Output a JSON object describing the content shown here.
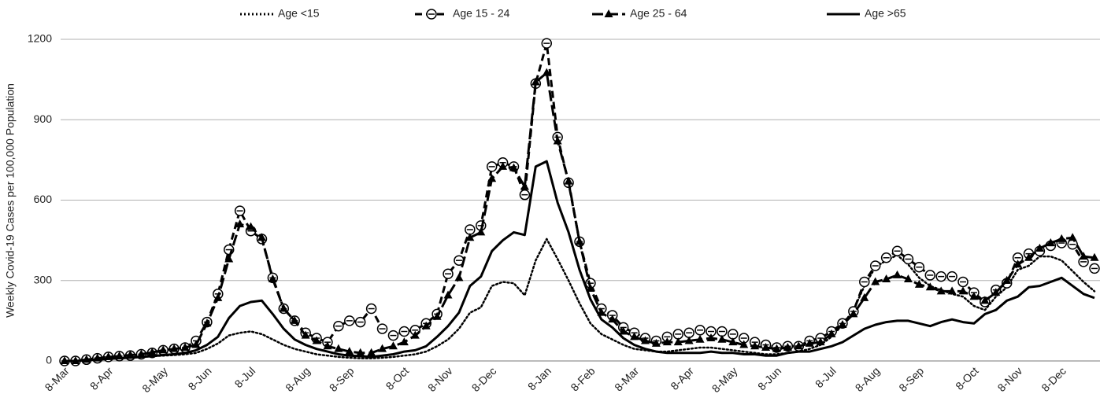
{
  "chart_data": {
    "type": "line",
    "ylabel": "Weekly Covid-19 Cases per 100,000 Population",
    "categories": [
      "8-Mar",
      null,
      null,
      null,
      "8-Apr",
      null,
      null,
      null,
      null,
      "8-May",
      null,
      null,
      null,
      "8-Jun",
      null,
      null,
      null,
      "8-Jul",
      null,
      null,
      null,
      null,
      "8-Aug",
      null,
      null,
      null,
      "8-Sep",
      null,
      null,
      null,
      null,
      "8-Oct",
      null,
      null,
      null,
      "8-Nov",
      null,
      null,
      null,
      "8-Dec",
      null,
      null,
      null,
      null,
      "8-Jan",
      null,
      null,
      null,
      "8-Feb",
      null,
      null,
      null,
      "8-Mar",
      null,
      null,
      null,
      null,
      "8-Apr",
      null,
      null,
      null,
      "8-May",
      null,
      null,
      null,
      "8-Jun",
      null,
      null,
      null,
      null,
      "8-Jul",
      null,
      null,
      null,
      "8-Aug",
      null,
      null,
      null,
      "8-Sep",
      null,
      null,
      null,
      null,
      "8-Oct",
      null,
      null,
      null,
      "8-Nov",
      null,
      null,
      null,
      "8-Dec",
      null,
      null,
      null
    ],
    "series": [
      {
        "name": "Age <15",
        "color": "#000000",
        "dash": "dotted",
        "marker": "none",
        "values": [
          0,
          0,
          3,
          5,
          8,
          10,
          12,
          15,
          18,
          20,
          22,
          25,
          30,
          45,
          65,
          95,
          105,
          110,
          100,
          80,
          60,
          45,
          35,
          25,
          20,
          15,
          12,
          10,
          10,
          12,
          15,
          20,
          25,
          35,
          55,
          80,
          120,
          180,
          200,
          280,
          295,
          290,
          245,
          375,
          455,
          380,
          300,
          215,
          140,
          100,
          80,
          60,
          45,
          40,
          35,
          35,
          40,
          45,
          50,
          50,
          45,
          40,
          35,
          30,
          25,
          25,
          30,
          35,
          45,
          60,
          90,
          135,
          190,
          280,
          350,
          375,
          395,
          360,
          310,
          280,
          265,
          250,
          240,
          205,
          190,
          240,
          275,
          340,
          355,
          390,
          390,
          375,
          335,
          295,
          260
        ]
      },
      {
        "name": "Age 15 - 24",
        "color": "#000000",
        "dash": "dashed",
        "marker": "circle",
        "values": [
          0,
          0,
          5,
          10,
          15,
          18,
          20,
          25,
          30,
          40,
          45,
          50,
          75,
          145,
          250,
          415,
          560,
          485,
          455,
          310,
          195,
          150,
          105,
          85,
          70,
          130,
          150,
          145,
          195,
          120,
          95,
          110,
          115,
          140,
          175,
          325,
          375,
          490,
          505,
          725,
          740,
          725,
          620,
          1035,
          1185,
          835,
          665,
          445,
          290,
          195,
          170,
          125,
          105,
          85,
          75,
          90,
          100,
          105,
          115,
          110,
          110,
          100,
          85,
          70,
          60,
          50,
          55,
          55,
          75,
          85,
          110,
          140,
          185,
          295,
          355,
          385,
          410,
          380,
          350,
          320,
          315,
          315,
          295,
          255,
          220,
          265,
          290,
          385,
          400,
          410,
          430,
          440,
          435,
          370,
          345
        ]
      },
      {
        "name": "Age 25 - 64",
        "color": "#000000",
        "dash": "longdash",
        "marker": "triangle",
        "values": [
          0,
          0,
          5,
          10,
          15,
          18,
          22,
          25,
          32,
          40,
          45,
          50,
          60,
          140,
          235,
          380,
          510,
          500,
          460,
          305,
          195,
          150,
          95,
          75,
          55,
          45,
          35,
          30,
          30,
          45,
          55,
          70,
          95,
          130,
          165,
          245,
          310,
          460,
          480,
          680,
          725,
          720,
          650,
          1040,
          1075,
          820,
          670,
          445,
          270,
          180,
          155,
          110,
          90,
          75,
          65,
          70,
          70,
          75,
          80,
          85,
          80,
          70,
          60,
          55,
          50,
          45,
          50,
          55,
          65,
          70,
          100,
          135,
          175,
          235,
          295,
          305,
          320,
          305,
          285,
          275,
          260,
          260,
          260,
          240,
          225,
          255,
          300,
          360,
          385,
          420,
          440,
          455,
          460,
          390,
          385
        ]
      },
      {
        "name": "Age >65",
        "color": "#000000",
        "dash": "solid",
        "marker": "none",
        "values": [
          0,
          0,
          3,
          5,
          8,
          10,
          12,
          15,
          18,
          22,
          25,
          30,
          40,
          60,
          90,
          160,
          205,
          220,
          225,
          175,
          120,
          80,
          60,
          45,
          35,
          25,
          20,
          18,
          15,
          20,
          25,
          35,
          40,
          55,
          90,
          130,
          180,
          280,
          315,
          410,
          450,
          480,
          470,
          725,
          745,
          590,
          480,
          340,
          230,
          155,
          125,
          85,
          60,
          45,
          35,
          30,
          30,
          30,
          30,
          35,
          30,
          30,
          25,
          25,
          20,
          20,
          30,
          35,
          35,
          45,
          55,
          70,
          95,
          120,
          135,
          145,
          150,
          150,
          140,
          130,
          145,
          155,
          145,
          140,
          175,
          190,
          225,
          240,
          275,
          280,
          295,
          310,
          280,
          250,
          235
        ]
      }
    ],
    "ylim": [
      0,
      1200
    ],
    "yticks": [
      0,
      300,
      600,
      900,
      1200
    ],
    "grid": true,
    "legend": "top"
  }
}
